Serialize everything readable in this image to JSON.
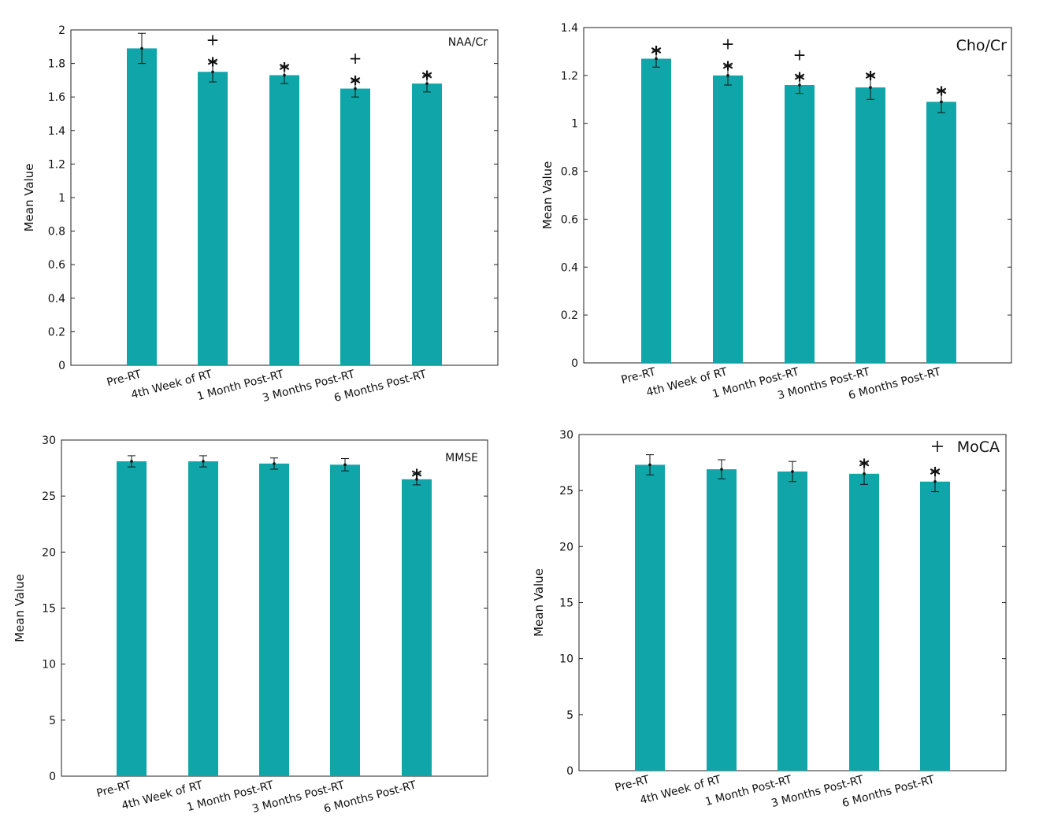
{
  "colors": {
    "bar": "#10a5a8",
    "axis": "#222222",
    "errorbar": "#111111"
  },
  "chart_data": [
    {
      "type": "bar",
      "title": "NAA/Cr",
      "ylabel": "Mean Value",
      "xlabel": "",
      "categories": [
        "Pre-RT",
        "4th Week of RT",
        "1 Month Post-RT",
        "3 Months Post-RT",
        "6 Months Post-RT"
      ],
      "values": [
        1.89,
        1.75,
        1.73,
        1.65,
        1.68
      ],
      "error": [
        0.09,
        0.06,
        0.05,
        0.05,
        0.05
      ],
      "significance_star": [
        "",
        "*",
        "*",
        "*",
        "*"
      ],
      "significance_plus": [
        "",
        "+",
        "",
        "+",
        ""
      ],
      "ylim": [
        0,
        2
      ],
      "yticks": [
        "0",
        "0.2",
        "0.4",
        "0.6",
        "0.8",
        "1",
        "1.2",
        "1.4",
        "1.6",
        "1.8",
        "2"
      ],
      "grid": false,
      "legend": "none"
    },
    {
      "type": "bar",
      "title": "Cho/Cr",
      "ylabel": "Mean Value",
      "xlabel": "",
      "categories": [
        "Pre-RT",
        "4th Week of RT",
        "1 Month Post-RT",
        "3 Months Post-RT",
        "6 Months Post-RT"
      ],
      "values": [
        1.27,
        1.2,
        1.16,
        1.15,
        1.09
      ],
      "error": [
        0.035,
        0.04,
        0.035,
        0.05,
        0.045
      ],
      "significance_star": [
        "*",
        "*",
        "*",
        "*",
        "*"
      ],
      "significance_plus": [
        "",
        "+",
        "+",
        "",
        ""
      ],
      "ylim": [
        0,
        1.4
      ],
      "yticks": [
        "0",
        "0.2",
        "0.4",
        "0.6",
        "0.8",
        "1",
        "1.2",
        "1.4"
      ],
      "grid": false,
      "legend": "none"
    },
    {
      "type": "bar",
      "title": "MMSE",
      "ylabel": "Mean Value",
      "xlabel": "",
      "categories": [
        "Pre-RT",
        "4th Week of RT",
        "1 Month Post-RT",
        "3 Months Post-RT",
        "6 Months Post-RT"
      ],
      "values": [
        28.1,
        28.1,
        27.9,
        27.8,
        26.5
      ],
      "error": [
        0.5,
        0.5,
        0.5,
        0.55,
        0.5
      ],
      "significance_star": [
        "",
        "",
        "",
        "",
        "*"
      ],
      "significance_plus": [
        "",
        "",
        "",
        "",
        ""
      ],
      "ylim": [
        0,
        30
      ],
      "yticks": [
        "0",
        "5",
        "10",
        "15",
        "20",
        "25",
        "30"
      ],
      "grid": false,
      "legend": "none"
    },
    {
      "type": "bar",
      "title": "MoCA",
      "title_marker": "+",
      "ylabel": "Mean Value",
      "xlabel": "",
      "categories": [
        "Pre-RT",
        "4th Week of RT",
        "1 Month Post-RT",
        "3 Months Post-RT",
        "6 Months Post-RT"
      ],
      "values": [
        27.3,
        26.9,
        26.7,
        26.5,
        25.8
      ],
      "error": [
        0.9,
        0.85,
        0.9,
        0.95,
        0.9
      ],
      "significance_star": [
        "",
        "",
        "",
        "*",
        "*"
      ],
      "significance_plus": [
        "",
        "",
        "",
        "",
        ""
      ],
      "ylim": [
        0,
        30
      ],
      "yticks": [
        "0",
        "5",
        "10",
        "15",
        "20",
        "25",
        "30"
      ],
      "grid": false,
      "legend": "none"
    }
  ]
}
